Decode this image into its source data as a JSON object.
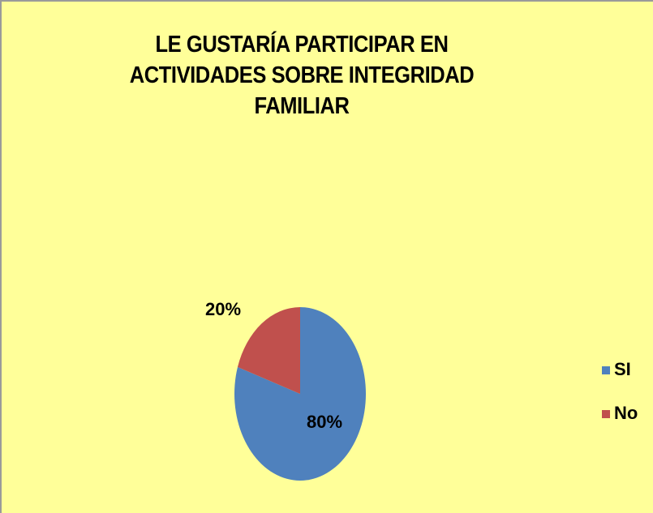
{
  "chart_data": {
    "type": "pie",
    "title": "LE GUSTARÍA PARTICIPAR EN ACTIVIDADES SOBRE INTEGRIDAD FAMILIAR",
    "categories": [
      "SI",
      "No"
    ],
    "values": [
      80,
      20
    ],
    "value_labels": [
      "80%",
      "20%"
    ],
    "colors": [
      "#4f81bd",
      "#c0504d"
    ],
    "legend": "right"
  }
}
